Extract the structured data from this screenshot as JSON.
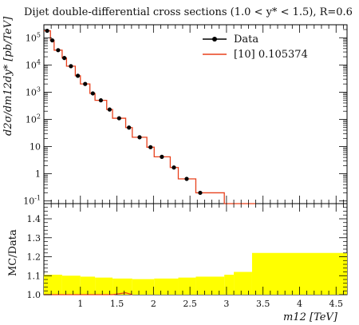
{
  "chart_data": {
    "type": "line",
    "title": "Dijet double-differential cross sections (1.0 < y* < 1.5), R=0.6",
    "xlabel": "m12 [TeV]",
    "ylabel": "d2σ/dm12dy* [pb/TeV]",
    "yscale": "log",
    "xlim": [
      0.5,
      4.65
    ],
    "ylim": [
      0.08,
      300000
    ],
    "x_ticks": [
      "1",
      "1.5",
      "2",
      "2.5",
      "3",
      "3.5",
      "4",
      "4.5"
    ],
    "y_ticks": [
      "10^-1",
      "1",
      "10",
      "10^2",
      "10^3",
      "10^4",
      "10^5"
    ],
    "legend": {
      "position": "top-right",
      "entries": [
        "Data",
        "[10] 0.105374"
      ]
    },
    "series": [
      {
        "name": "Data",
        "marker": "circle",
        "color": "#000000",
        "x": [
          0.545,
          0.615,
          0.695,
          0.78,
          0.87,
          0.965,
          1.065,
          1.17,
          1.28,
          1.4,
          1.53,
          1.665,
          1.81,
          1.96,
          2.115,
          2.28,
          2.455,
          2.64,
          2.835,
          3.04,
          3.25
        ],
        "y": [
          180000,
          80000,
          35000,
          18000,
          9000,
          4000,
          2000,
          900,
          500,
          230,
          110,
          50,
          22,
          9.5,
          4.2,
          1.7,
          0.65,
          0.2,
          null,
          null,
          null
        ]
      },
      {
        "name": "[10] 0.105374",
        "style": "step",
        "color": "#e8401c",
        "edges": [
          0.5,
          0.59,
          0.64,
          0.75,
          0.81,
          0.93,
          1.0,
          1.13,
          1.2,
          1.36,
          1.44,
          1.62,
          1.71,
          1.91,
          2.01,
          2.23,
          2.34,
          2.58,
          2.7,
          2.97,
          3.1,
          3.4
        ],
        "y": [
          180000,
          80000,
          35000,
          18000,
          9000,
          4000,
          2000,
          900,
          500,
          230,
          110,
          50,
          22,
          9.5,
          4.2,
          1.7,
          0.65,
          0.2,
          0.2,
          0.08,
          0.08
        ]
      }
    ],
    "ratio_panel": {
      "ylabel": "MC/Data",
      "ylim": [
        1.0,
        1.48
      ],
      "y_ticks": [
        "1.0",
        "1.1",
        "1.2",
        "1.3",
        "1.4"
      ],
      "band_color": "#ffff00",
      "band_edges": [
        0.5,
        0.75,
        1.0,
        1.2,
        1.44,
        1.71,
        2.01,
        2.34,
        2.58,
        2.97,
        3.1,
        3.35,
        4.65
      ],
      "band_upper": [
        1.105,
        1.1,
        1.095,
        1.09,
        1.085,
        1.082,
        1.085,
        1.09,
        1.095,
        1.105,
        1.12,
        1.22,
        1.22
      ],
      "line_values_x": [
        0.5,
        1.44,
        1.62,
        1.71
      ],
      "line_values_y": [
        1.0,
        1.0,
        1.01,
        1.0
      ]
    }
  }
}
